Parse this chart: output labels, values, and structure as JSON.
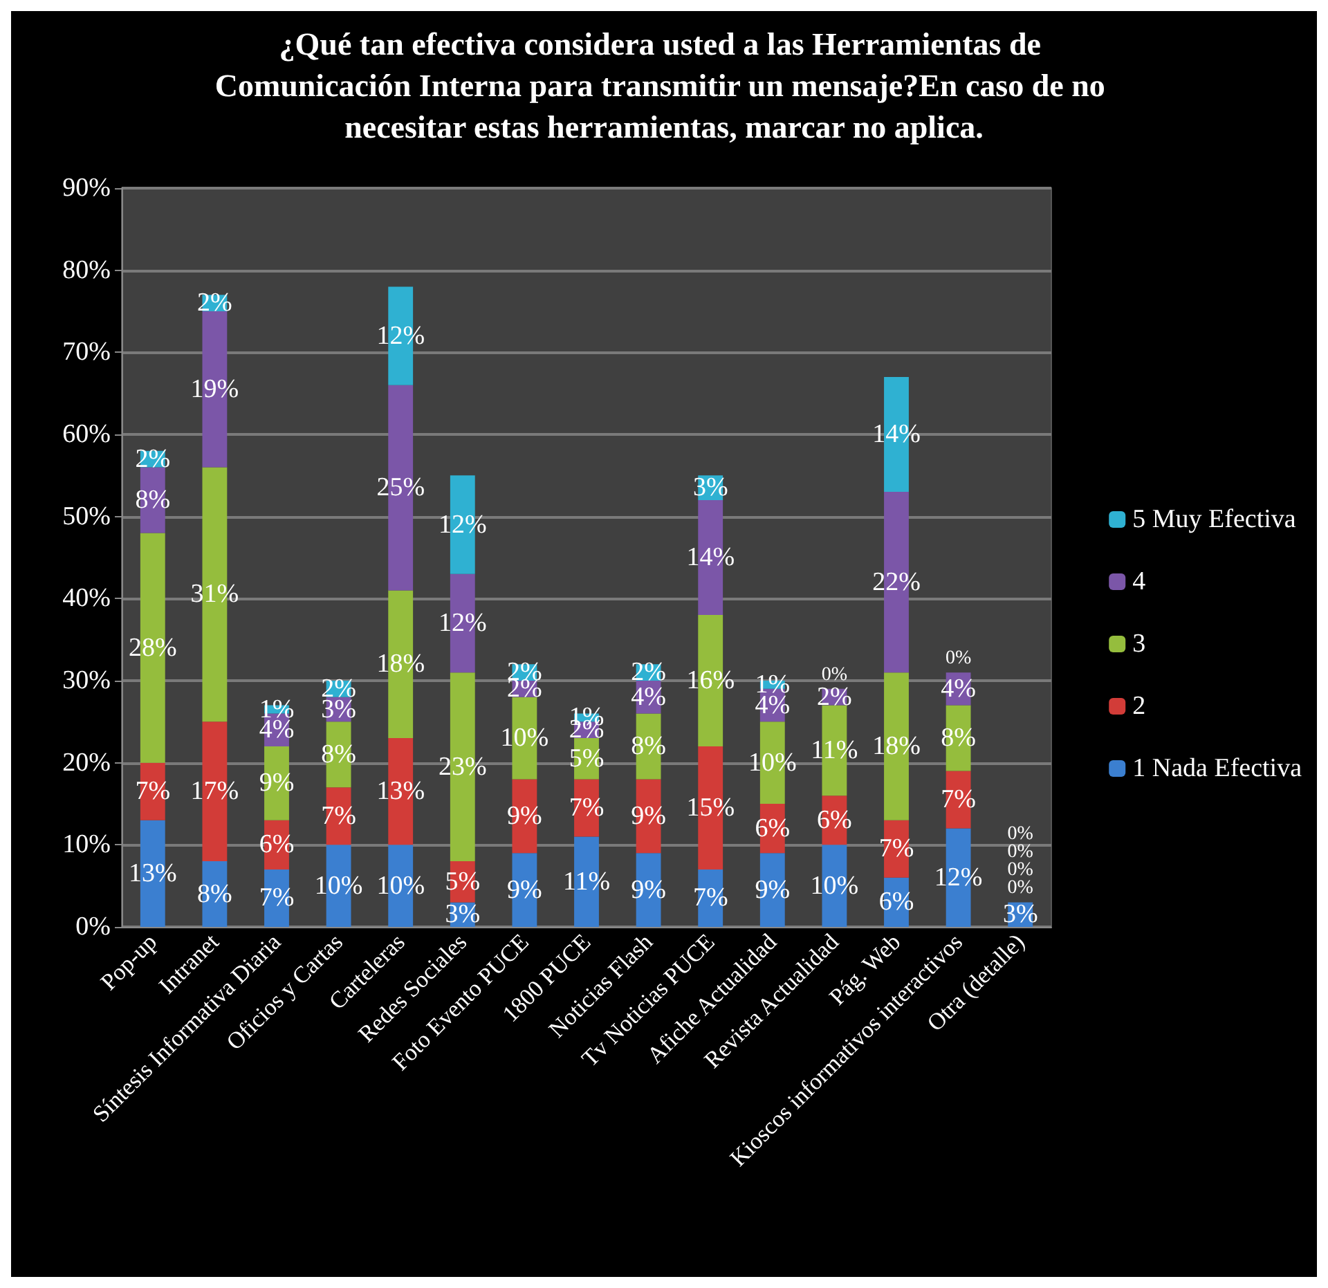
{
  "chart_data": {
    "type": "bar",
    "stacked": true,
    "title": "¿Qué tan efectiva considera usted a las Herramientas de Comunicación Interna para transmitir un mensaje?En caso de no necesitar estas herramientas, marcar no aplica.",
    "categories": [
      "Pop-up",
      "Intranet",
      "Síntesis Informativa Diaria",
      "Oficios y Cartas",
      "Carteleras",
      "Redes Sociales",
      "Foto Evento PUCE",
      "1800 PUCE",
      "Noticias Flash",
      "Tv Noticias PUCE",
      "Afiche Actualidad",
      "Revista Actualidad",
      "Pág. Web",
      "Kioscos informativos interactivos",
      "Otra (detalle)"
    ],
    "series": [
      {
        "name": "1 Nada Efectiva",
        "color": "#3b7fd0",
        "values": [
          13,
          8,
          7,
          10,
          10,
          3,
          9,
          11,
          9,
          7,
          9,
          10,
          6,
          12,
          3
        ],
        "value_labels": [
          "13%",
          "8%",
          "7%",
          "10%",
          "10%",
          "3%",
          "9%",
          "11%",
          "9%",
          "7%",
          "9%",
          "10%",
          "6%",
          "12%",
          "3%"
        ]
      },
      {
        "name": "2",
        "color": "#d23c38",
        "values": [
          7,
          17,
          6,
          7,
          13,
          5,
          9,
          7,
          9,
          15,
          6,
          6,
          7,
          7,
          0
        ],
        "value_labels": [
          "7%",
          "17%",
          "6%",
          "7%",
          "13%",
          "5%",
          "9%",
          "7%",
          "9%",
          "15%",
          "6%",
          "6%",
          "7%",
          "7%",
          "0%"
        ]
      },
      {
        "name": "3",
        "color": "#95bd3d",
        "values": [
          28,
          31,
          9,
          8,
          18,
          23,
          10,
          5,
          8,
          16,
          10,
          11,
          18,
          8,
          0
        ],
        "value_labels": [
          "28%",
          "31%",
          "9%",
          "8%",
          "18%",
          "23%",
          "10%",
          "5%",
          "8%",
          "16%",
          "10%",
          "11%",
          "18%",
          "8%",
          "0%"
        ]
      },
      {
        "name": "4",
        "color": "#7b56a8",
        "values": [
          8,
          19,
          4,
          3,
          25,
          12,
          2,
          2,
          4,
          14,
          4,
          2,
          22,
          4,
          0
        ],
        "value_labels": [
          "8%",
          "19%",
          "4%",
          "3%",
          "25%",
          "12%",
          "2%",
          "2%",
          "4%",
          "14%",
          "4%",
          "2%",
          "22%",
          "4%",
          "0%"
        ]
      },
      {
        "name": "5 Muy Efectiva",
        "color": "#2fb1d2",
        "values": [
          2,
          2,
          1,
          2,
          12,
          12,
          2,
          1,
          2,
          3,
          1,
          0,
          14,
          0,
          0
        ],
        "value_labels": [
          "2%",
          "2%",
          "1%",
          "2%",
          "12%",
          "12%",
          "2%",
          "1%",
          "2%",
          "3%",
          "1%",
          "0%",
          "14%",
          "0%",
          "0%"
        ]
      }
    ],
    "ylim": [
      0,
      90
    ],
    "yticks": [
      {
        "value": 0,
        "label": "0%"
      },
      {
        "value": 10,
        "label": "10%"
      },
      {
        "value": 20,
        "label": "20%"
      },
      {
        "value": 30,
        "label": "30%"
      },
      {
        "value": 40,
        "label": "40%"
      },
      {
        "value": 50,
        "label": "50%"
      },
      {
        "value": 60,
        "label": "60%"
      },
      {
        "value": 70,
        "label": "70%"
      },
      {
        "value": 80,
        "label": "80%"
      },
      {
        "value": 90,
        "label": "90%"
      }
    ],
    "grid": "y",
    "legend": "right"
  }
}
